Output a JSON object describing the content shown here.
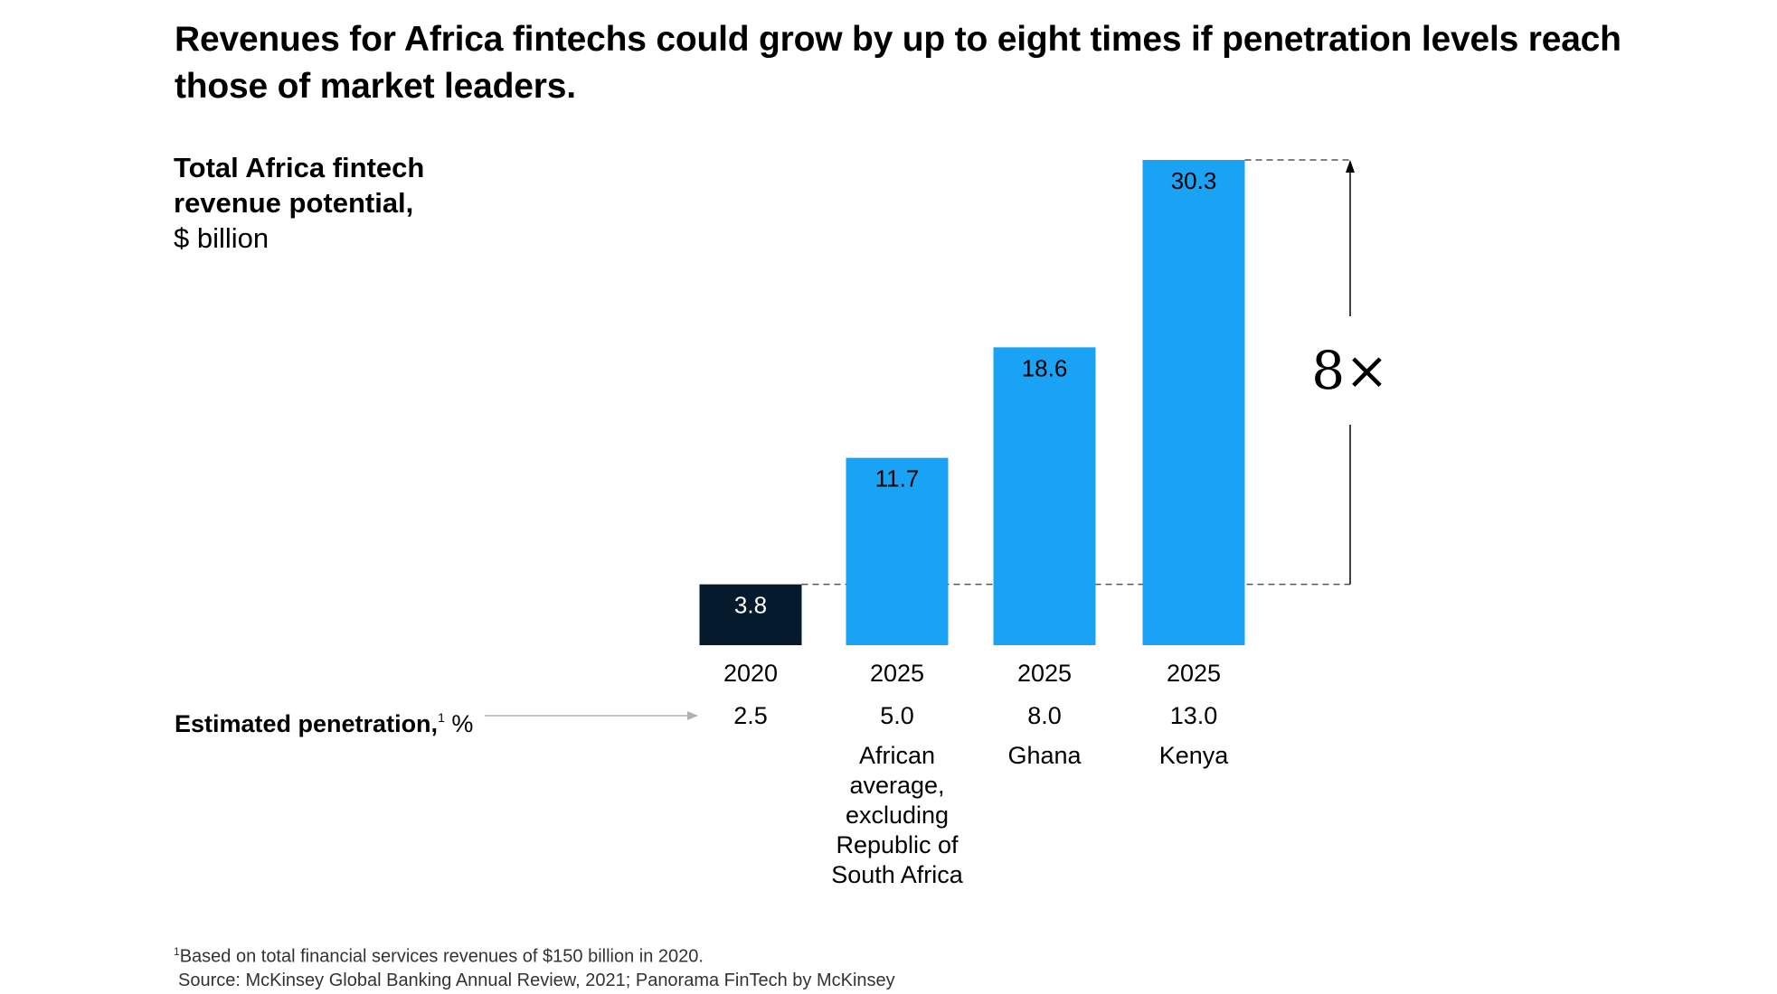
{
  "title": "Revenues for Africa fintechs could grow by up to eight times if penetration levels reach those of market leaders.",
  "chart_data": {
    "type": "bar",
    "title": "Revenues for Africa fintechs could grow by up to eight times if penetration levels reach those of market leaders.",
    "ylabel_bold": "Total Africa fintech revenue potential,",
    "ylabel_unit": "$ billion",
    "categories": [
      "2020",
      "2025",
      "2025",
      "2025"
    ],
    "values": [
      3.8,
      11.7,
      18.6,
      30.3
    ],
    "value_labels": [
      "3.8",
      "11.7",
      "18.6",
      "30.3"
    ],
    "bar_colors": [
      "#061a2e",
      "#1aa3f5",
      "#1aa3f5",
      "#1aa3f5"
    ],
    "label_colors": [
      "#ffffff",
      "#000000",
      "#000000",
      "#000000"
    ],
    "ylim": [
      0,
      30.3
    ],
    "grid": false,
    "penetration": {
      "label": "Estimated penetration,",
      "footnote_mark": "1",
      "unit": "%",
      "values": [
        "2.5",
        "5.0",
        "8.0",
        "13.0"
      ]
    },
    "descriptors": [
      "",
      "African average, excluding Republic of South Africa",
      "Ghana",
      "Kenya"
    ],
    "annotation": {
      "text": "8×",
      "from_value": 3.8,
      "to_value": 30.3
    }
  },
  "footnote": {
    "line1": "Based on total financial services revenues of $150 billion in 2020.",
    "line1_mark": "1",
    "line2": "Source: McKinsey Global Banking Annual Review, 2021; Panorama FinTech by McKinsey"
  },
  "colors": {
    "dark_bar": "#061a2e",
    "accent_bar": "#1aa3f5",
    "dashed": "#555555",
    "arrow_gray": "#b0b0b0"
  }
}
